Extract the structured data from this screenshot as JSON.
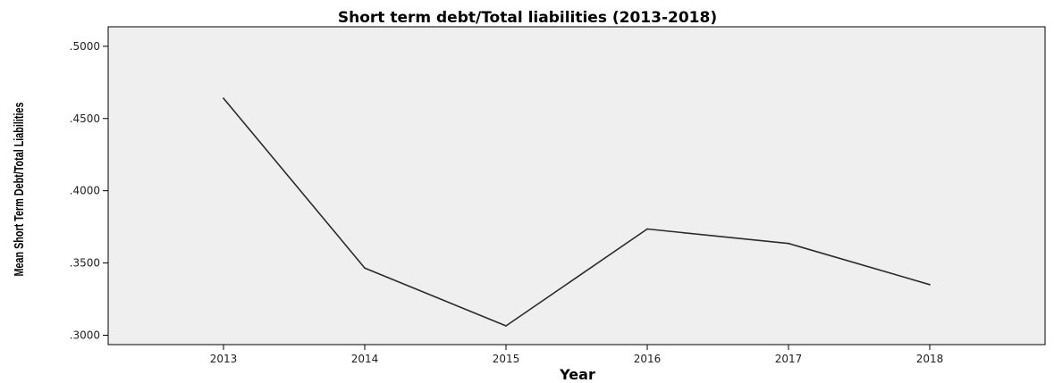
{
  "chart_data": {
    "type": "line",
    "title": "Short term debt/Total liabilities (2013-2018)",
    "xlabel": "Year",
    "ylabel": "Mean Short Term Debt/Total Liabilities",
    "categories": [
      "2013",
      "2014",
      "2015",
      "2016",
      "2017",
      "2018"
    ],
    "series": [
      {
        "values": [
          0.464,
          0.3465,
          0.3065,
          0.3735,
          0.3635,
          0.335
        ]
      }
    ],
    "ylim": [
      0.2935,
      0.5135
    ],
    "yticks": [
      0.3,
      0.35,
      0.4,
      0.45,
      0.5
    ],
    "ytick_labels": [
      ".3000",
      ".3500",
      ".4000",
      ".4500",
      ".5000"
    ],
    "grid": false,
    "legend": "none",
    "colors": {
      "plot_background": "#efefef",
      "line": "#2b2b2b",
      "frame": "#000000"
    }
  }
}
